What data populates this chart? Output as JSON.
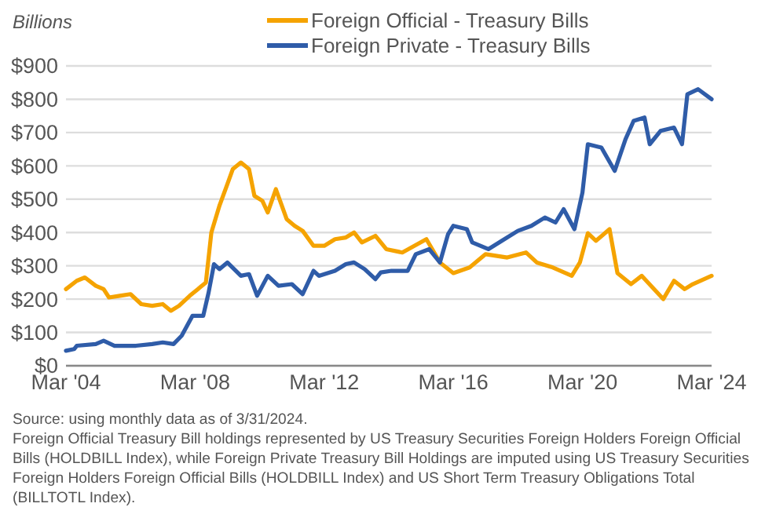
{
  "chart_data": {
    "type": "line",
    "ylabel": "Billions",
    "legend": "top",
    "grid": "y",
    "line_style": "solid",
    "marker": "none",
    "xlim": [
      "2004-03",
      "2024-03"
    ],
    "xticks": [
      {
        "value": "2004-03",
        "label": "Mar '04"
      },
      {
        "value": "2008-03",
        "label": "Mar '08"
      },
      {
        "value": "2012-03",
        "label": "Mar '12"
      },
      {
        "value": "2016-03",
        "label": "Mar '16"
      },
      {
        "value": "2020-03",
        "label": "Mar '20"
      },
      {
        "value": "2024-03",
        "label": "Mar '24"
      }
    ],
    "ylim": [
      0,
      900
    ],
    "yticks": [
      {
        "value": 0,
        "label": "$0"
      },
      {
        "value": 100,
        "label": "$100"
      },
      {
        "value": 200,
        "label": "$200"
      },
      {
        "value": 300,
        "label": "$300"
      },
      {
        "value": 400,
        "label": "$400"
      },
      {
        "value": 500,
        "label": "$500"
      },
      {
        "value": 600,
        "label": "$600"
      },
      {
        "value": 700,
        "label": "$700"
      },
      {
        "value": 800,
        "label": "$800"
      },
      {
        "value": 900,
        "label": "$900"
      }
    ],
    "series": [
      {
        "name": "Foreign Official - Treasury Bills",
        "color": "#f5a300",
        "x": [
          "2004-03",
          "2004-07",
          "2004-10",
          "2005-02",
          "2005-05",
          "2005-07",
          "2005-11",
          "2006-03",
          "2006-07",
          "2006-11",
          "2007-03",
          "2007-06",
          "2007-09",
          "2008-01",
          "2008-04",
          "2008-07",
          "2008-09",
          "2008-12",
          "2009-03",
          "2009-05",
          "2009-08",
          "2009-11",
          "2010-01",
          "2010-04",
          "2010-06",
          "2010-09",
          "2011-01",
          "2011-04",
          "2011-07",
          "2011-11",
          "2012-03",
          "2012-07",
          "2012-11",
          "2013-02",
          "2013-05",
          "2013-10",
          "2014-02",
          "2014-08",
          "2015-05",
          "2015-10",
          "2016-03",
          "2016-09",
          "2017-03",
          "2017-11",
          "2018-06",
          "2018-10",
          "2019-04",
          "2019-11",
          "2020-02",
          "2020-05",
          "2020-08",
          "2021-01",
          "2021-04",
          "2021-09",
          "2022-01",
          "2022-09",
          "2023-01",
          "2023-05",
          "2023-08",
          "2024-03"
        ],
        "values": [
          230,
          255,
          265,
          240,
          230,
          205,
          210,
          215,
          185,
          180,
          185,
          165,
          180,
          210,
          230,
          250,
          400,
          480,
          545,
          590,
          610,
          590,
          510,
          495,
          460,
          530,
          440,
          420,
          405,
          360,
          360,
          380,
          385,
          400,
          370,
          390,
          350,
          340,
          380,
          310,
          278,
          295,
          335,
          325,
          340,
          310,
          295,
          270,
          310,
          398,
          375,
          410,
          278,
          245,
          270,
          200,
          255,
          230,
          245,
          270
        ]
      },
      {
        "name": "Foreign Private - Treasury Bills",
        "color": "#2f5ca8",
        "x": [
          "2004-03",
          "2004-06",
          "2004-07",
          "2005-02",
          "2005-05",
          "2005-09",
          "2006-05",
          "2006-11",
          "2007-03",
          "2007-07",
          "2007-10",
          "2008-02",
          "2008-06",
          "2008-08",
          "2008-10",
          "2008-12",
          "2009-03",
          "2009-08",
          "2009-11",
          "2010-02",
          "2010-06",
          "2010-10",
          "2011-03",
          "2011-07",
          "2011-11",
          "2012-01",
          "2012-07",
          "2012-11",
          "2013-02",
          "2013-06",
          "2013-10",
          "2013-12",
          "2014-04",
          "2014-10",
          "2015-01",
          "2015-06",
          "2015-10",
          "2016-01",
          "2016-03",
          "2016-08",
          "2016-10",
          "2017-04",
          "2017-09",
          "2018-03",
          "2018-08",
          "2019-01",
          "2019-05",
          "2019-08",
          "2019-12",
          "2020-03",
          "2020-05",
          "2020-10",
          "2021-03",
          "2021-07",
          "2021-10",
          "2022-02",
          "2022-04",
          "2022-08",
          "2023-01",
          "2023-04",
          "2023-06",
          "2023-10",
          "2024-03"
        ],
        "values": [
          45,
          50,
          60,
          65,
          75,
          60,
          60,
          65,
          70,
          65,
          90,
          150,
          150,
          220,
          305,
          290,
          310,
          270,
          275,
          210,
          270,
          240,
          245,
          215,
          285,
          270,
          285,
          305,
          310,
          290,
          260,
          280,
          285,
          285,
          335,
          350,
          310,
          395,
          420,
          410,
          370,
          350,
          375,
          405,
          420,
          445,
          430,
          470,
          410,
          520,
          665,
          655,
          585,
          680,
          735,
          745,
          665,
          705,
          715,
          665,
          815,
          830,
          800
        ]
      }
    ],
    "annotations": [
      "Source: using monthly data as of 3/31/2024.",
      "Foreign Official Treasury Bill holdings represented by US Treasury Securities Foreign Holders Foreign Official Bills (HOLDBILL Index), while Foreign Private Treasury Bill Holdings are imputed using US Treasury Securities Foreign Holders Foreign Official Bills (HOLDBILL Index) and US Short Term Treasury Obligations Total (BILLTOTL Index)."
    ]
  }
}
